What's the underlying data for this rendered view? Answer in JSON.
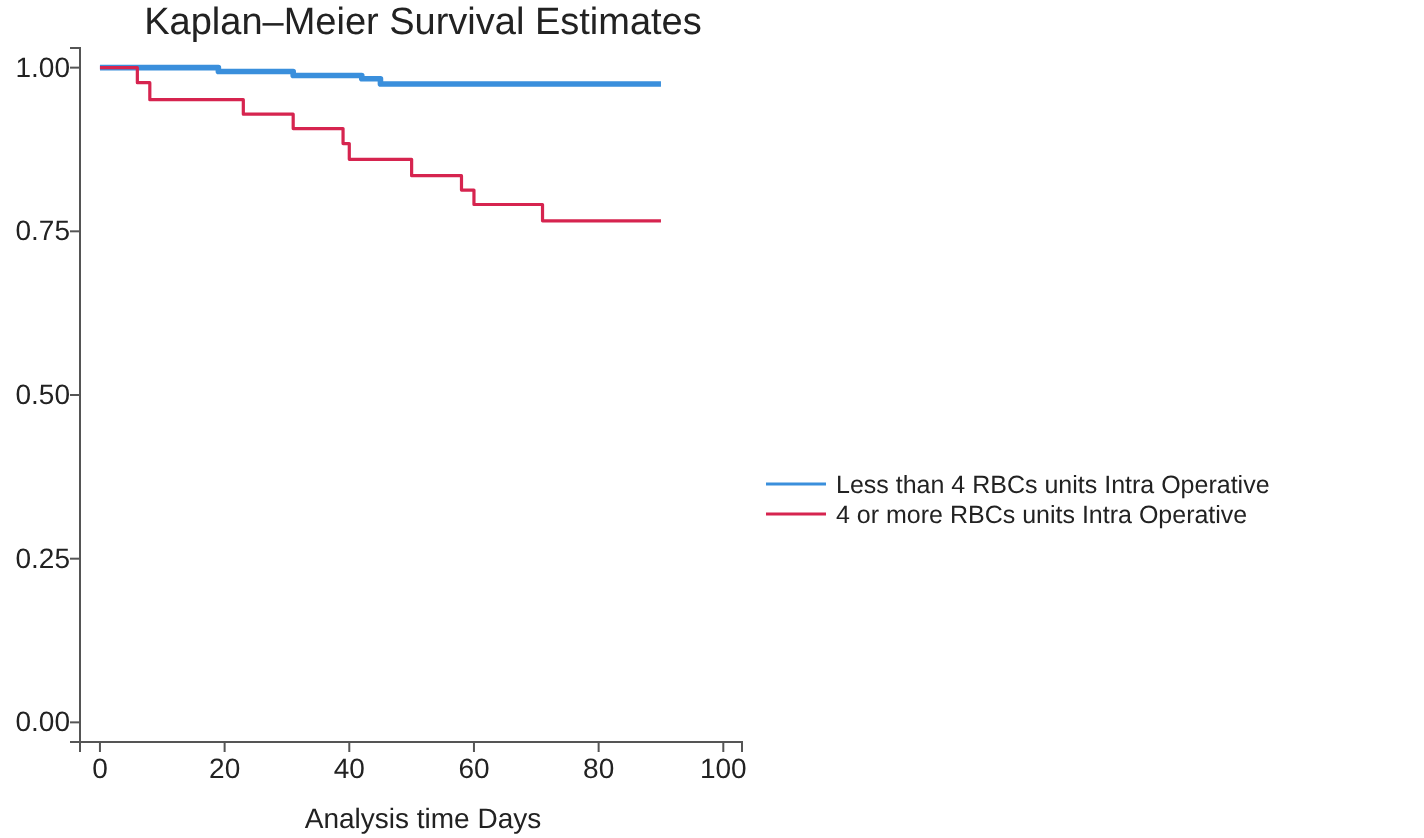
{
  "chart_data": {
    "type": "step",
    "title": "Kaplan–Meier Survival Estimates",
    "xlabel": "Analysis time Days",
    "xlim": [
      -3.2,
      103
    ],
    "xticks": [
      0,
      20,
      40,
      60,
      80,
      100
    ],
    "ylim": [
      -0.03,
      1.03
    ],
    "yticks": [
      {
        "value": 0,
        "label": "0.00"
      },
      {
        "value": 0.25,
        "label": "0.25"
      },
      {
        "value": 0.5,
        "label": "0.50"
      },
      {
        "value": 0.75,
        "label": "0.75"
      },
      {
        "value": 1,
        "label": "1.00"
      }
    ],
    "grid": false,
    "legend": "right",
    "line_style": "solid",
    "marker": "none",
    "series": [
      {
        "name": "Less than 4 RBCs units Intra Operative",
        "color": "#3a8fdc",
        "x": [
          0,
          19,
          31,
          42,
          45,
          90
        ],
        "values": [
          1,
          0.994,
          0.988,
          0.983,
          0.975,
          0.975
        ]
      },
      {
        "name": "4 or more RBCs units Intra Operative",
        "color": "#d6244f",
        "x": [
          0,
          6,
          8,
          23,
          31,
          39,
          40,
          50,
          58,
          60,
          71,
          90
        ],
        "values": [
          1,
          0.977,
          0.951,
          0.929,
          0.907,
          0.884,
          0.86,
          0.835,
          0.813,
          0.791,
          0.766,
          0.766
        ]
      }
    ]
  }
}
